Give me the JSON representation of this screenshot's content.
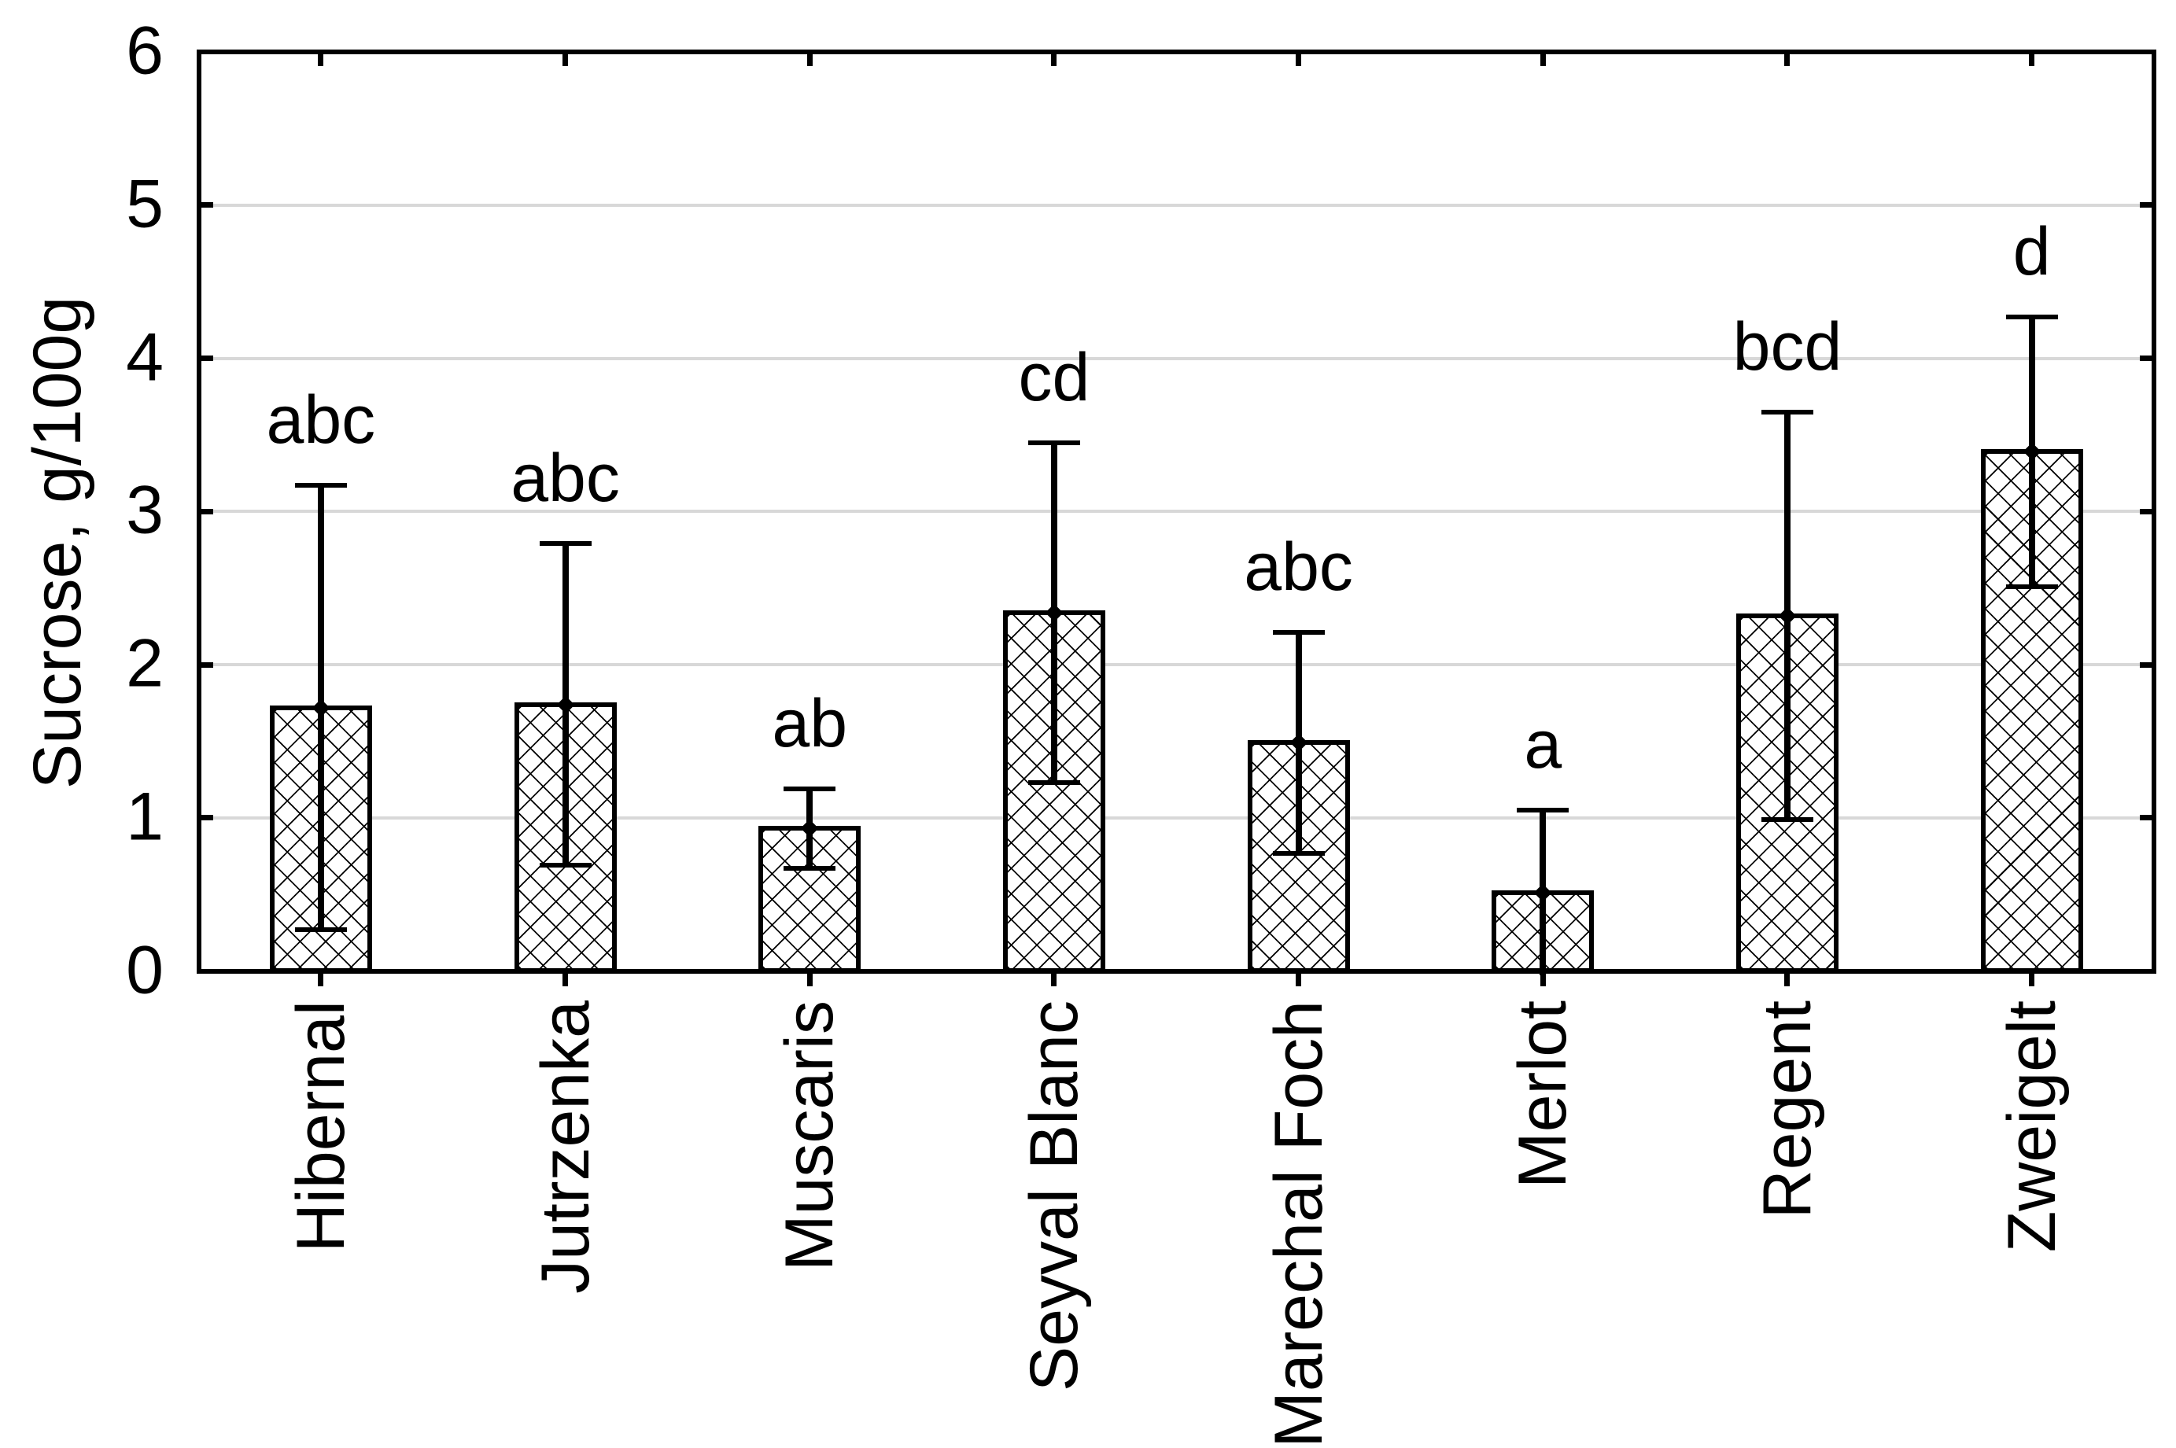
{
  "chart_data": {
    "type": "bar",
    "title": "",
    "xlabel": "",
    "ylabel": "Sucrose, g/100g",
    "ylim": [
      0,
      6
    ],
    "yticks": [
      0,
      1,
      2,
      3,
      4,
      5,
      6
    ],
    "grid": "horizontal gridlines at y=1..5",
    "legend": "none",
    "categories": [
      "Hibernal",
      "Jutrzenka",
      "Muscaris",
      "Seyval Blanc",
      "Marechal Foch",
      "Merlot",
      "Regent",
      "Zweigelt"
    ],
    "series": [
      {
        "name": "Sucrose, g/100g",
        "values": [
          1.72,
          1.74,
          0.93,
          2.34,
          1.49,
          0.51,
          2.32,
          3.39
        ],
        "error_plus": [
          1.45,
          1.05,
          0.26,
          1.11,
          0.72,
          0.54,
          1.33,
          0.88
        ],
        "error_minus": [
          1.45,
          1.05,
          0.26,
          1.11,
          0.72,
          0.54,
          1.33,
          0.88
        ]
      }
    ],
    "significance_letters": [
      "abc",
      "abc",
      "ab",
      "cd",
      "abc",
      "a",
      "bcd",
      "d"
    ],
    "error_bar_note": "symmetric error bars with end caps; lower whisker of Merlot reaches 0 (no lower cap shown)",
    "marker_note": "small black diamond at each mean value",
    "style": {
      "bar_fill": "#ffffff",
      "bar_hatch": "xx crosshatch",
      "bar_edge_color": "#000000",
      "axis_color": "#000000",
      "gridline_color": "#d8d8d8",
      "text_color": "#000000",
      "background": "#ffffff"
    }
  }
}
